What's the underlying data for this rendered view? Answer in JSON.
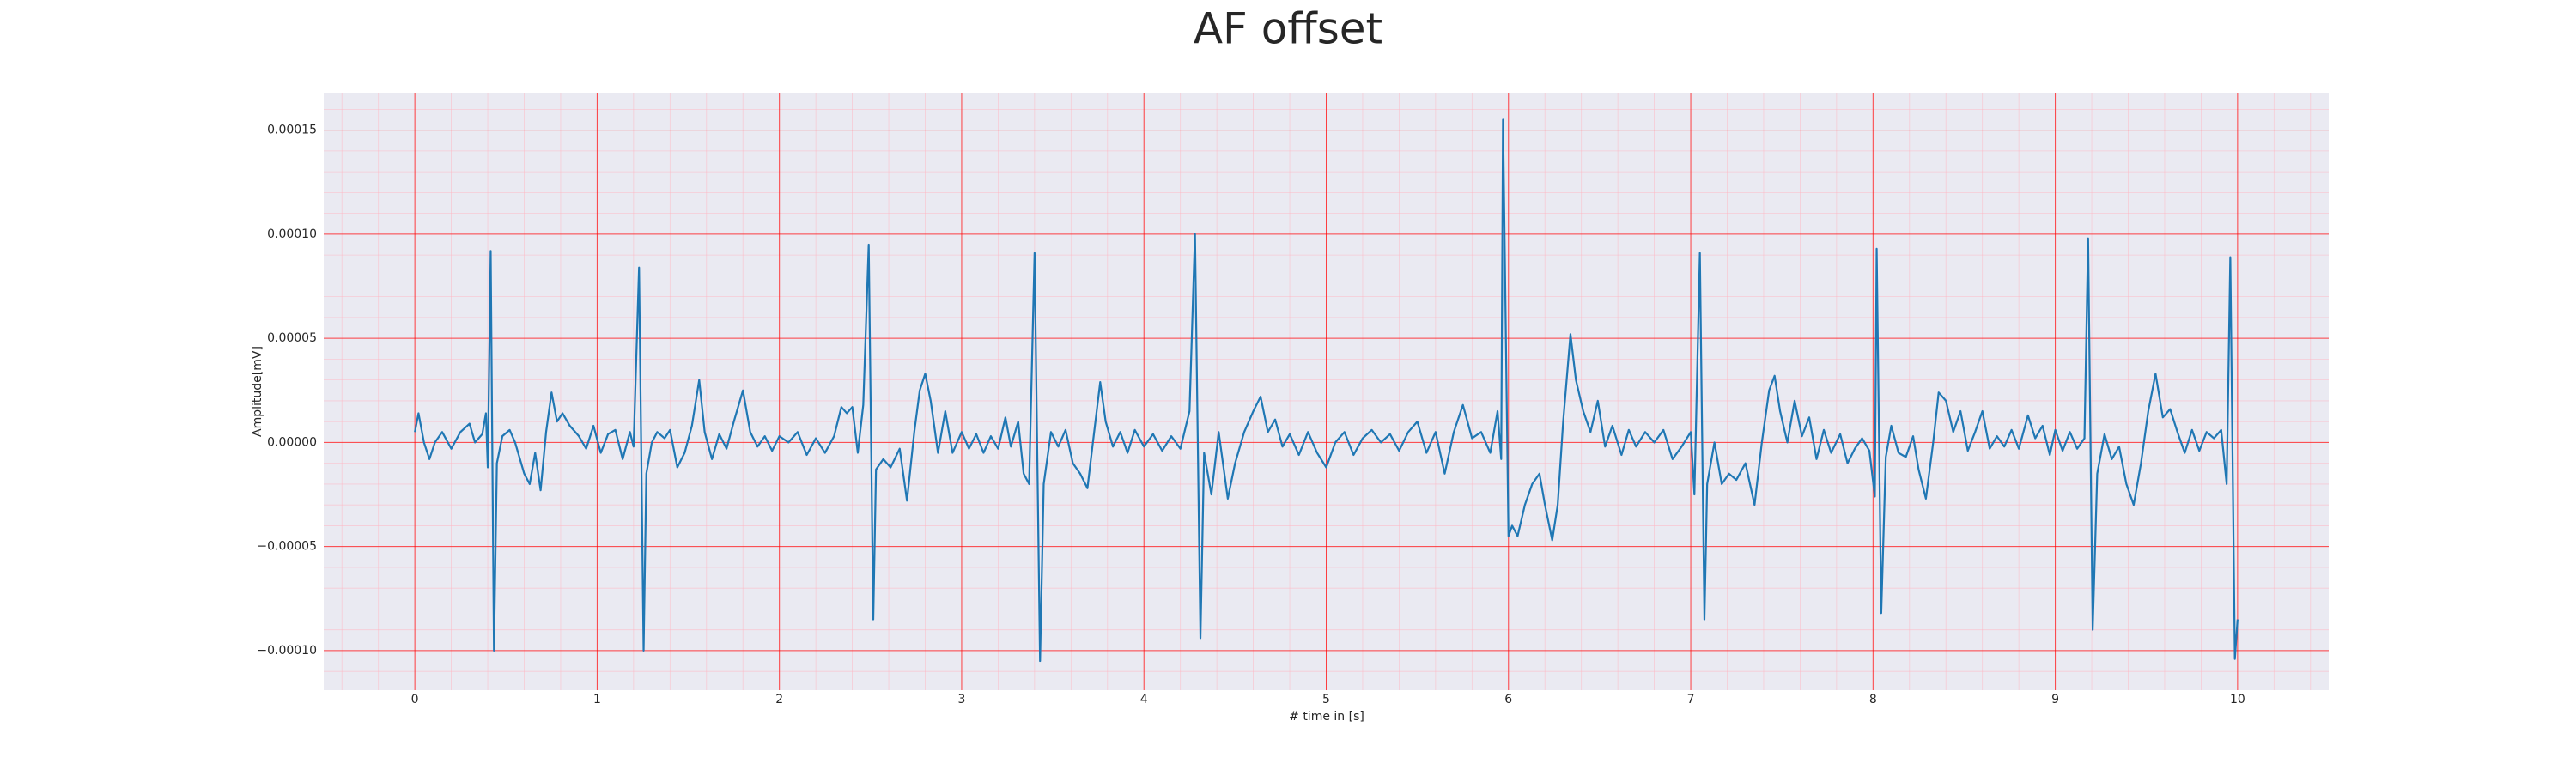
{
  "chart_data": {
    "type": "line",
    "title": "AF offset",
    "xlabel": "# time in [s]",
    "ylabel": "Amplitude[mV]",
    "color": "#1f77b4",
    "grid": true,
    "minor_grid": true,
    "xlim": [
      -0.5,
      10.5
    ],
    "ylim": [
      -0.000119,
      0.000168
    ],
    "xticks": [
      0,
      1,
      2,
      3,
      4,
      5,
      6,
      7,
      8,
      9,
      10
    ],
    "yticks": [
      {
        "value": -0.0001,
        "label": "−0.00010"
      },
      {
        "value": -5e-05,
        "label": "−0.00005"
      },
      {
        "value": 0,
        "label": "0.00000"
      },
      {
        "value": 5e-05,
        "label": "0.00005"
      },
      {
        "value": 0.0001,
        "label": "0.00010"
      },
      {
        "value": 0.00015,
        "label": "0.00015"
      }
    ],
    "x": [
      0,
      0.02,
      0.05,
      0.08,
      0.11,
      0.15,
      0.2,
      0.25,
      0.3,
      0.33,
      0.37,
      0.39,
      0.4,
      0.416,
      0.434,
      0.45,
      0.48,
      0.52,
      0.55,
      0.6,
      0.63,
      0.66,
      0.69,
      0.72,
      0.75,
      0.78,
      0.81,
      0.85,
      0.9,
      0.94,
      0.98,
      1.02,
      1.06,
      1.1,
      1.14,
      1.18,
      1.2,
      1.23,
      1.255,
      1.27,
      1.3,
      1.33,
      1.37,
      1.4,
      1.44,
      1.48,
      1.52,
      1.56,
      1.59,
      1.63,
      1.67,
      1.71,
      1.75,
      1.8,
      1.84,
      1.88,
      1.92,
      1.96,
      2.0,
      2.05,
      2.1,
      2.15,
      2.2,
      2.25,
      2.3,
      2.34,
      2.37,
      2.4,
      2.43,
      2.46,
      2.49,
      2.515,
      2.53,
      2.57,
      2.61,
      2.66,
      2.7,
      2.74,
      2.77,
      2.8,
      2.83,
      2.87,
      2.91,
      2.95,
      3.0,
      3.04,
      3.08,
      3.12,
      3.16,
      3.2,
      3.24,
      3.27,
      3.31,
      3.34,
      3.37,
      3.4,
      3.43,
      3.45,
      3.49,
      3.53,
      3.57,
      3.61,
      3.65,
      3.69,
      3.72,
      3.76,
      3.79,
      3.83,
      3.87,
      3.91,
      3.95,
      4.0,
      4.05,
      4.1,
      4.15,
      4.2,
      4.25,
      4.28,
      4.31,
      4.33,
      4.37,
      4.41,
      4.46,
      4.5,
      4.55,
      4.6,
      4.64,
      4.68,
      4.72,
      4.76,
      4.8,
      4.85,
      4.9,
      4.95,
      5.0,
      5.05,
      5.1,
      5.15,
      5.2,
      5.25,
      5.3,
      5.35,
      5.4,
      5.45,
      5.5,
      5.55,
      5.6,
      5.65,
      5.7,
      5.75,
      5.8,
      5.85,
      5.9,
      5.94,
      5.96,
      5.97,
      6.0,
      6.02,
      6.05,
      6.09,
      6.13,
      6.17,
      6.2,
      6.24,
      6.27,
      6.3,
      6.34,
      6.37,
      6.41,
      6.45,
      6.49,
      6.53,
      6.57,
      6.62,
      6.66,
      6.7,
      6.75,
      6.8,
      6.85,
      6.9,
      6.95,
      7.0,
      7.02,
      7.05,
      7.075,
      7.09,
      7.13,
      7.17,
      7.21,
      7.25,
      7.3,
      7.35,
      7.39,
      7.43,
      7.46,
      7.49,
      7.53,
      7.57,
      7.61,
      7.65,
      7.69,
      7.73,
      7.77,
      7.82,
      7.86,
      7.9,
      7.94,
      7.98,
      8.01,
      8.02,
      8.045,
      8.07,
      8.1,
      8.14,
      8.18,
      8.22,
      8.25,
      8.29,
      8.33,
      8.36,
      8.4,
      8.44,
      8.48,
      8.52,
      8.56,
      8.6,
      8.64,
      8.68,
      8.72,
      8.76,
      8.8,
      8.85,
      8.89,
      8.93,
      8.97,
      9.0,
      9.04,
      9.08,
      9.12,
      9.16,
      9.18,
      9.205,
      9.23,
      9.27,
      9.31,
      9.35,
      9.39,
      9.43,
      9.47,
      9.51,
      9.55,
      9.59,
      9.63,
      9.67,
      9.71,
      9.75,
      9.79,
      9.83,
      9.87,
      9.91,
      9.94,
      9.96,
      9.985,
      10.0
    ],
    "values": [
      5e-06,
      1.4e-05,
      0,
      -8e-06,
      0,
      5e-06,
      -3e-06,
      5e-06,
      9e-06,
      0,
      4e-06,
      1.4e-05,
      -1.2e-05,
      9.2e-05,
      -0.0001,
      -1e-05,
      3e-06,
      6e-06,
      0,
      -1.5e-05,
      -2e-05,
      -5e-06,
      -2.3e-05,
      5e-06,
      2.4e-05,
      1e-05,
      1.4e-05,
      8e-06,
      3e-06,
      -3e-06,
      8e-06,
      -5e-06,
      4e-06,
      6e-06,
      -8e-06,
      5e-06,
      -2e-06,
      8.4e-05,
      -0.0001,
      -1.5e-05,
      0,
      5e-06,
      2e-06,
      6e-06,
      -1.2e-05,
      -5e-06,
      8e-06,
      3e-05,
      5e-06,
      -8e-06,
      4e-06,
      -3e-06,
      1e-05,
      2.5e-05,
      5e-06,
      -2e-06,
      3e-06,
      -4e-06,
      3e-06,
      0,
      5e-06,
      -6e-06,
      2e-06,
      -5e-06,
      3e-06,
      1.7e-05,
      1.4e-05,
      1.7e-05,
      -5e-06,
      1.8e-05,
      9.5e-05,
      -8.5e-05,
      -1.3e-05,
      -8e-06,
      -1.2e-05,
      -3e-06,
      -2.8e-05,
      5e-06,
      2.5e-05,
      3.3e-05,
      2e-05,
      -5e-06,
      1.5e-05,
      -5e-06,
      5e-06,
      -3e-06,
      4e-06,
      -5e-06,
      3e-06,
      -3e-06,
      1.2e-05,
      -2e-06,
      1e-05,
      -1.5e-05,
      -2e-05,
      9.1e-05,
      -0.000105,
      -2e-05,
      5e-06,
      -2e-06,
      6e-06,
      -1e-05,
      -1.5e-05,
      -2.2e-05,
      0,
      2.9e-05,
      1e-05,
      -2e-06,
      5e-06,
      -5e-06,
      6e-06,
      -2e-06,
      4e-06,
      -4e-06,
      3e-06,
      -3e-06,
      1.5e-05,
      0.0001,
      -9.4e-05,
      -5e-06,
      -2.5e-05,
      5e-06,
      -2.7e-05,
      -1e-05,
      5e-06,
      1.5e-05,
      2.2e-05,
      5e-06,
      1.1e-05,
      -2e-06,
      4e-06,
      -6e-06,
      5e-06,
      -5e-06,
      -1.2e-05,
      0,
      5e-06,
      -6e-06,
      2e-06,
      6e-06,
      0,
      4e-06,
      -4e-06,
      5e-06,
      1e-05,
      -5e-06,
      5e-06,
      -1.5e-05,
      5e-06,
      1.8e-05,
      2e-06,
      5e-06,
      -5e-06,
      1.5e-05,
      -8e-06,
      0.000155,
      -4.5e-05,
      -4e-05,
      -4.5e-05,
      -3e-05,
      -2e-05,
      -1.5e-05,
      -3e-05,
      -4.7e-05,
      -3e-05,
      1e-05,
      5.2e-05,
      3e-05,
      1.5e-05,
      5e-06,
      2e-05,
      -2e-06,
      8e-06,
      -6e-06,
      6e-06,
      -2e-06,
      5e-06,
      0,
      6e-06,
      -8e-06,
      -2e-06,
      5e-06,
      -2.5e-05,
      9.1e-05,
      -8.5e-05,
      -2e-05,
      0,
      -2e-05,
      -1.5e-05,
      -1.8e-05,
      -1e-05,
      -3e-05,
      0,
      2.5e-05,
      3.2e-05,
      1.5e-05,
      0,
      2e-05,
      3e-06,
      1.2e-05,
      -8e-06,
      6e-06,
      -5e-06,
      4e-06,
      -1e-05,
      -3e-06,
      2e-06,
      -4e-06,
      -2.6e-05,
      9.3e-05,
      -8.2e-05,
      -7e-06,
      8e-06,
      -5e-06,
      -7e-06,
      3e-06,
      -1.3e-05,
      -2.7e-05,
      0,
      2.4e-05,
      2e-05,
      5e-06,
      1.5e-05,
      -4e-06,
      5e-06,
      1.5e-05,
      -3e-06,
      3e-06,
      -2e-06,
      6e-06,
      -3e-06,
      1.3e-05,
      2e-06,
      8e-06,
      -6e-06,
      6e-06,
      -4e-06,
      5e-06,
      -3e-06,
      2e-06,
      9.8e-05,
      -9e-05,
      -1.5e-05,
      4e-06,
      -8e-06,
      -2e-06,
      -2e-05,
      -3e-05,
      -1e-05,
      1.5e-05,
      3.3e-05,
      1.2e-05,
      1.6e-05,
      5e-06,
      -5e-06,
      6e-06,
      -4e-06,
      5e-06,
      2e-06,
      6e-06,
      -2e-05,
      8.9e-05,
      -0.000104,
      -8.5e-05
    ]
  }
}
